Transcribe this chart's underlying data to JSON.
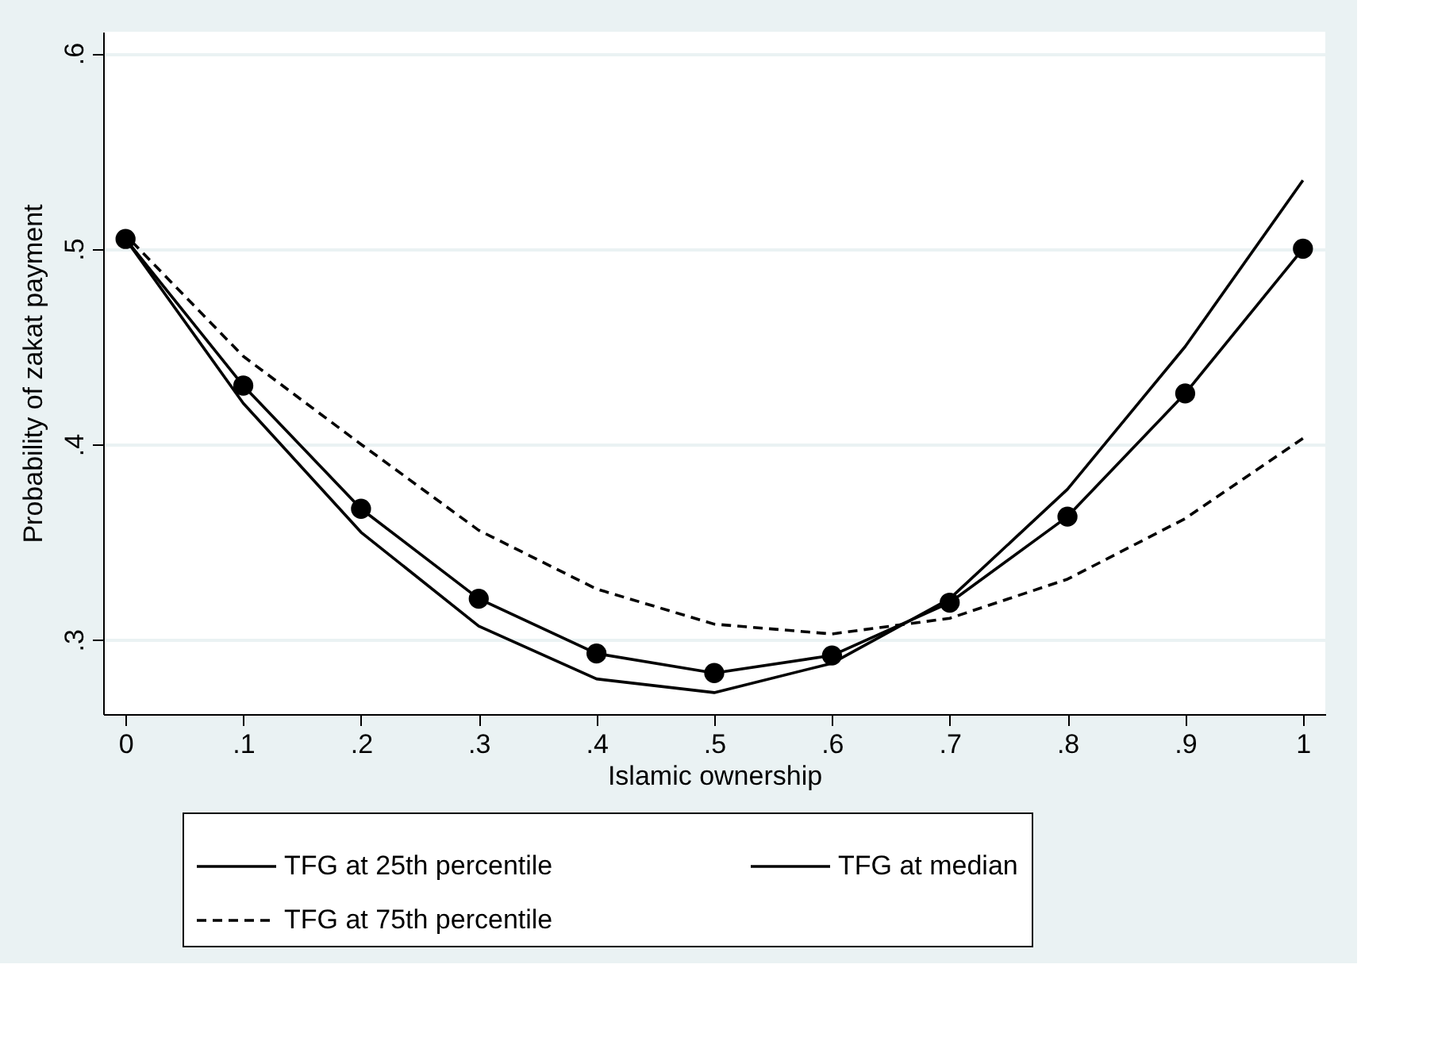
{
  "chart_data": {
    "type": "line",
    "xlabel": "Islamic ownership",
    "ylabel": "Probability of zakat payment",
    "x": [
      0,
      0.1,
      0.2,
      0.3,
      0.4,
      0.5,
      0.6,
      0.7,
      0.8,
      0.9,
      1
    ],
    "series": [
      {
        "name": "TFG at 25th percentile",
        "color": "#000000",
        "marker": "none",
        "line_style": "solid",
        "values": [
          0.505,
          0.421,
          0.355,
          0.307,
          0.28,
          0.273,
          0.288,
          0.321,
          0.377,
          0.45,
          0.535
        ]
      },
      {
        "name": "TFG at median",
        "color": "#000000",
        "marker": "circle",
        "line_style": "solid",
        "values": [
          0.505,
          0.43,
          0.367,
          0.321,
          0.293,
          0.283,
          0.292,
          0.319,
          0.363,
          0.426,
          0.5
        ]
      },
      {
        "name": "TFG at 75th percentile",
        "color": "#000000",
        "marker": "none",
        "line_style": "dashed",
        "values": [
          0.507,
          0.445,
          0.4,
          0.356,
          0.326,
          0.308,
          0.303,
          0.311,
          0.331,
          0.362,
          0.403
        ]
      }
    ],
    "xlim": [
      -0.019,
      1.019
    ],
    "ylim": [
      0.262,
      0.611
    ],
    "xticks": [
      0,
      {
        "value": 0.1,
        "label": ".1"
      },
      {
        "value": 0.2,
        "label": ".2"
      },
      {
        "value": 0.3,
        "label": ".3"
      },
      {
        "value": 0.4,
        "label": ".4"
      },
      {
        "value": 0.5,
        "label": ".5"
      },
      {
        "value": 0.6,
        "label": ".6"
      },
      {
        "value": 0.7,
        "label": ".7"
      },
      {
        "value": 0.8,
        "label": ".8"
      },
      {
        "value": 0.9,
        "label": ".9"
      },
      1
    ],
    "yticks": [
      {
        "value": 0.3,
        "label": ".3"
      },
      {
        "value": 0.4,
        "label": ".4"
      },
      {
        "value": 0.5,
        "label": ".5"
      },
      {
        "value": 0.6,
        "label": ".6"
      }
    ],
    "grid": "y",
    "legend": "bottom"
  }
}
